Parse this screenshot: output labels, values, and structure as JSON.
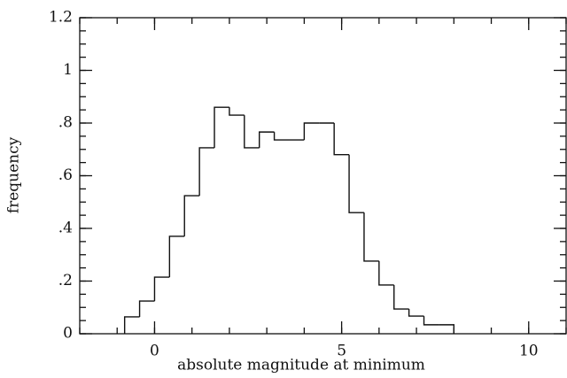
{
  "chart_data": {
    "type": "histogram",
    "xlabel": "absolute magnitude at minimum",
    "ylabel": "frequency",
    "bins": [
      -0.8,
      -0.4,
      0,
      0.4,
      0.8,
      1.2,
      1.6,
      2.0,
      2.4,
      2.8,
      3.2,
      3.6,
      4.0,
      4.4,
      4.8,
      5.2,
      5.6,
      6.0,
      6.4,
      6.8,
      7.2,
      7.6,
      8.0
    ],
    "counts": [
      0.064,
      0.124,
      0.215,
      0.37,
      0.524,
      0.706,
      0.86,
      0.83,
      0.706,
      0.766,
      0.736,
      0.736,
      0.8,
      0.8,
      0.68,
      0.46,
      0.276,
      0.185,
      0.094,
      0.067,
      0.034,
      0.034
    ],
    "color": "#111111",
    "xlim": [
      -2,
      11
    ],
    "ylim": [
      0,
      1.2
    ],
    "xticks": [
      0,
      5,
      10
    ],
    "yticks": [
      0,
      {
        "value": 0.2,
        "label": ".2"
      },
      {
        "value": 0.4,
        "label": ".4"
      },
      {
        "value": 0.6,
        "label": ".6"
      },
      {
        "value": 0.8,
        "label": ".8"
      },
      1,
      {
        "value": 1.2,
        "label": "1.2"
      }
    ],
    "grid": false
  }
}
